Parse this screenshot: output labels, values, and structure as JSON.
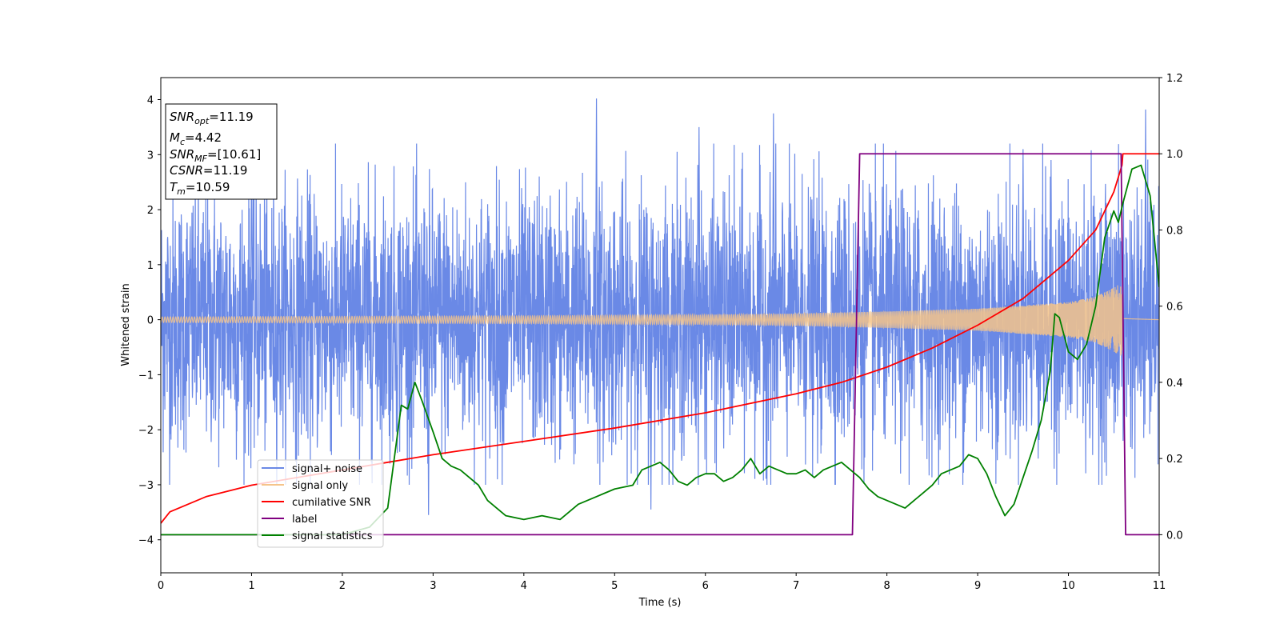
{
  "chart_data": {
    "type": "line",
    "xlabel": "Time (s)",
    "ylabel": "Whitened strain",
    "xlim": [
      0,
      11
    ],
    "ylim_left": [
      -4.6,
      4.4
    ],
    "ylim_right": [
      -0.1,
      1.2
    ],
    "x_ticks": [
      0,
      1,
      2,
      3,
      4,
      5,
      6,
      7,
      8,
      9,
      10,
      11
    ],
    "y_ticks_left": [
      -4,
      -3,
      -2,
      -1,
      0,
      1,
      2,
      3,
      4
    ],
    "y_ticks_right": [
      0.0,
      0.2,
      0.4,
      0.6,
      0.8,
      1.0,
      1.2
    ],
    "x_tick_labels": [
      "0",
      "1",
      "2",
      "3",
      "4",
      "5",
      "6",
      "7",
      "8",
      "9",
      "10",
      "11"
    ],
    "y_tick_labels_left": [
      "−4",
      "−3",
      "−2",
      "−1",
      "0",
      "1",
      "2",
      "3",
      "4"
    ],
    "y_tick_labels_right": [
      "0.0",
      "0.2",
      "0.4",
      "0.6",
      "0.8",
      "1.0",
      "1.2"
    ],
    "grid": false,
    "legend_position": "lower-left",
    "info_box": {
      "position": "top-left",
      "lines": [
        {
          "sym": "SNR",
          "sub": "opt",
          "val": "=11.19"
        },
        {
          "sym": "M",
          "sub": "c",
          "val": "=4.42"
        },
        {
          "sym": "SNR",
          "sub": "MF",
          "val": "=[10.61]"
        },
        {
          "sym": "CSNR",
          "sub": "",
          "val": "=11.19"
        },
        {
          "sym": "T",
          "sub": "m",
          "val": "=10.59"
        }
      ]
    },
    "series": [
      {
        "name": "signal+ noise",
        "color": "#6a89e6",
        "axis": "left",
        "kind": "noisy strain",
        "envelope_x": [
          0,
          2,
          4,
          6,
          8,
          10,
          10.6,
          11
        ],
        "envelope_y": [
          1.5,
          1.5,
          1.5,
          1.5,
          1.5,
          1.5,
          1.5,
          1.5
        ],
        "peak_max": [
          4.02,
          3.82
        ],
        "peak_min": [
          -3.55,
          -3.45
        ]
      },
      {
        "name": "signal only",
        "color": "#f5c48a",
        "axis": "left",
        "kind": "chirp",
        "envelope_x": [
          0,
          2,
          4,
          6,
          7,
          8,
          9,
          10,
          10.3,
          10.5,
          10.59,
          10.6,
          11
        ],
        "envelope_y": [
          0.05,
          0.06,
          0.07,
          0.09,
          0.11,
          0.15,
          0.2,
          0.32,
          0.42,
          0.58,
          0.68,
          0.02,
          0.0
        ]
      },
      {
        "name": "cumilative SNR",
        "color": "#ff0000",
        "axis": "right",
        "x": [
          0,
          0.1,
          0.5,
          1,
          2,
          3,
          4,
          5,
          6,
          7,
          7.5,
          8,
          8.5,
          9,
          9.5,
          10,
          10.3,
          10.5,
          10.59,
          10.6,
          11
        ],
        "y": [
          0.03,
          0.06,
          0.1,
          0.13,
          0.17,
          0.21,
          0.245,
          0.28,
          0.32,
          0.37,
          0.4,
          0.44,
          0.49,
          0.55,
          0.62,
          0.72,
          0.8,
          0.9,
          0.97,
          1.0,
          1.0
        ]
      },
      {
        "name": "label",
        "color": "#800080",
        "axis": "right",
        "x": [
          0,
          7.62,
          7.7,
          10.58,
          10.63,
          11
        ],
        "y": [
          0.0,
          0.0,
          1.0,
          1.0,
          0.0,
          0.0
        ]
      },
      {
        "name": "signal statistics",
        "color": "#008000",
        "axis": "right",
        "x": [
          0,
          1,
          2,
          2.3,
          2.5,
          2.65,
          2.72,
          2.8,
          2.88,
          3.0,
          3.1,
          3.2,
          3.3,
          3.4,
          3.5,
          3.6,
          3.7,
          3.8,
          4.0,
          4.2,
          4.4,
          4.5,
          4.6,
          4.8,
          4.9,
          5.0,
          5.2,
          5.3,
          5.4,
          5.5,
          5.6,
          5.7,
          5.8,
          5.9,
          6.0,
          6.1,
          6.2,
          6.3,
          6.4,
          6.5,
          6.6,
          6.7,
          6.8,
          6.9,
          7.0,
          7.1,
          7.2,
          7.3,
          7.4,
          7.5,
          7.6,
          7.7,
          7.8,
          7.9,
          8.0,
          8.2,
          8.4,
          8.5,
          8.6,
          8.7,
          8.8,
          8.9,
          9.0,
          9.1,
          9.2,
          9.3,
          9.4,
          9.5,
          9.6,
          9.7,
          9.8,
          9.85,
          9.9,
          10.0,
          10.1,
          10.2,
          10.3,
          10.4,
          10.5,
          10.55,
          10.6,
          10.7,
          10.8,
          10.9,
          11.0
        ],
        "y": [
          0.0,
          0.0,
          0.0,
          0.02,
          0.07,
          0.34,
          0.33,
          0.4,
          0.35,
          0.27,
          0.2,
          0.18,
          0.17,
          0.15,
          0.13,
          0.09,
          0.07,
          0.05,
          0.04,
          0.05,
          0.04,
          0.06,
          0.08,
          0.1,
          0.11,
          0.12,
          0.13,
          0.17,
          0.18,
          0.19,
          0.17,
          0.14,
          0.13,
          0.15,
          0.16,
          0.16,
          0.14,
          0.15,
          0.17,
          0.2,
          0.16,
          0.18,
          0.17,
          0.16,
          0.16,
          0.17,
          0.15,
          0.17,
          0.18,
          0.19,
          0.17,
          0.15,
          0.12,
          0.1,
          0.09,
          0.07,
          0.11,
          0.13,
          0.16,
          0.17,
          0.18,
          0.21,
          0.2,
          0.16,
          0.1,
          0.05,
          0.08,
          0.15,
          0.22,
          0.3,
          0.43,
          0.58,
          0.57,
          0.48,
          0.46,
          0.5,
          0.6,
          0.78,
          0.85,
          0.82,
          0.87,
          0.96,
          0.97,
          0.89,
          0.65
        ]
      }
    ]
  }
}
